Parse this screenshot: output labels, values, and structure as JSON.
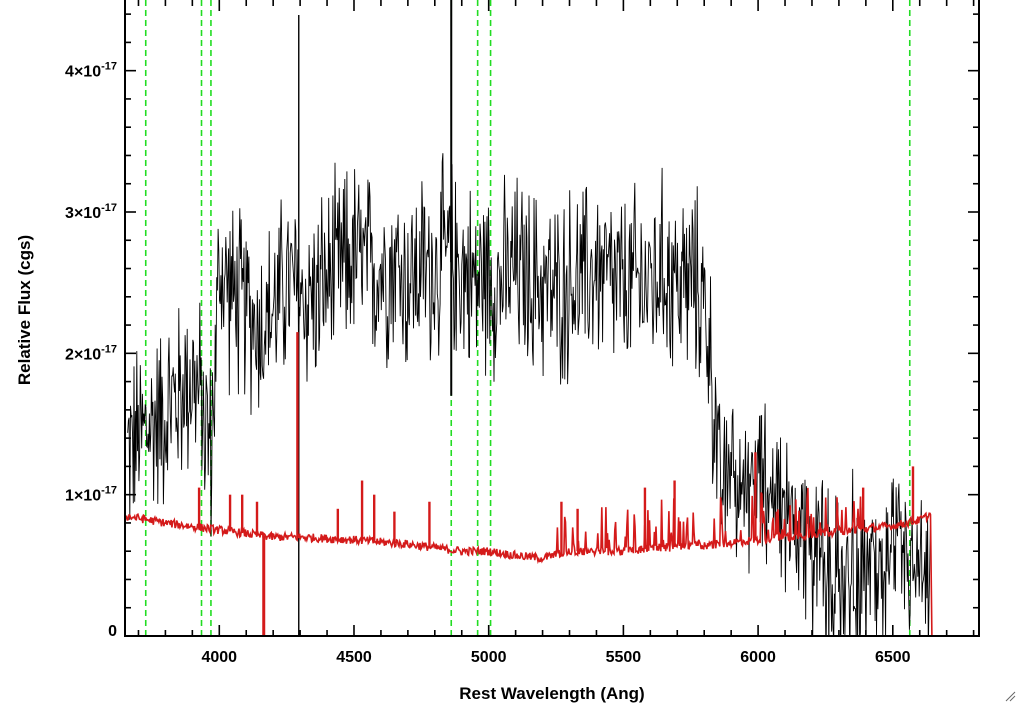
{
  "chart_data": {
    "type": "line",
    "xlabel": "Rest Wavelength (Ang)",
    "ylabel": "Relative Flux (cgs)",
    "xlim": [
      3650,
      6820
    ],
    "ylim": [
      0,
      4.5e-17
    ],
    "x_ticks": [
      {
        "value": 4000,
        "label": "4000"
      },
      {
        "value": 4500,
        "label": "4500"
      },
      {
        "value": 5000,
        "label": "5000"
      },
      {
        "value": 5500,
        "label": "5500"
      },
      {
        "value": 6000,
        "label": "6000"
      },
      {
        "value": 6500,
        "label": "6500"
      }
    ],
    "y_ticks": [
      {
        "value": 0,
        "mantissa": "0",
        "exponent": ""
      },
      {
        "value": 1e-17,
        "mantissa": "1×10",
        "exponent": "-17"
      },
      {
        "value": 2e-17,
        "mantissa": "2×10",
        "exponent": "-17"
      },
      {
        "value": 3e-17,
        "mantissa": "3×10",
        "exponent": "-17"
      },
      {
        "value": 4e-17,
        "mantissa": "4×10",
        "exponent": "-17"
      }
    ],
    "series": [
      {
        "color": "#000000",
        "x": [
          3660,
          3700,
          3750,
          3800,
          3850,
          3900,
          3940,
          3970,
          4000,
          4050,
          4100,
          4150,
          4200,
          4250,
          4300,
          4350,
          4400,
          4450,
          4500,
          4550,
          4600,
          4650,
          4700,
          4750,
          4800,
          4850,
          4900,
          4950,
          5000,
          5050,
          5100,
          5150,
          5200,
          5250,
          5300,
          5350,
          5400,
          5450,
          5500,
          5550,
          5600,
          5650,
          5700,
          5750,
          5800,
          5830,
          5860,
          5900,
          5950,
          6000,
          6050,
          6100,
          6150,
          6200,
          6250,
          6300,
          6350,
          6400,
          6450,
          6500,
          6550,
          6600,
          6640
        ],
        "y": [
          1.3e-17,
          1.4e-17,
          1.5e-17,
          1.6e-17,
          1.7e-17,
          1.85e-17,
          1.6e-17,
          1.3e-17,
          2.6e-17,
          2.4e-17,
          2.3e-17,
          2.2e-17,
          2.3e-17,
          2.5e-17,
          2.4e-17,
          2.4e-17,
          2.5e-17,
          2.6e-17,
          2.7e-17,
          2.6e-17,
          2.6e-17,
          2.65e-17,
          2.5e-17,
          2.6e-17,
          2.6e-17,
          2.7e-17,
          2.6e-17,
          2.5e-17,
          2.55e-17,
          2.5e-17,
          2.6e-17,
          2.5e-17,
          2.5e-17,
          2.4e-17,
          2.5e-17,
          2.5e-17,
          2.6e-17,
          2.5e-17,
          2.45e-17,
          2.5e-17,
          2.5e-17,
          2.6e-17,
          2.5e-17,
          2.5e-17,
          2.4e-17,
          1.8e-17,
          1e-17,
          1.2e-17,
          1.1e-17,
          1.1e-17,
          1e-17,
          9e-18,
          8e-18,
          7e-18,
          5e-18,
          4e-18,
          4e-18,
          5e-18,
          4e-18,
          5e-18,
          5e-18,
          4e-18,
          2e-18
        ]
      },
      {
        "color": "#d41a1a",
        "x": [
          3650,
          3800,
          4000,
          4200,
          4300,
          4500,
          4700,
          4900,
          5000,
          5100,
          5200,
          5300,
          5400,
          5500,
          5600,
          5700,
          5800,
          5900,
          6000,
          6100,
          6200,
          6300,
          6400,
          6500,
          6600,
          6640,
          6645,
          6820
        ],
        "y": [
          8.5e-18,
          8e-18,
          7.5e-18,
          7e-18,
          7e-18,
          6.8e-18,
          6.5e-18,
          6e-18,
          6e-18,
          5.7e-18,
          5.5e-18,
          6e-18,
          6e-18,
          6e-18,
          6.2e-18,
          6.3e-18,
          6.4e-18,
          6.6e-18,
          6.8e-18,
          7e-18,
          7.2e-18,
          7.4e-18,
          7.6e-18,
          7.8e-18,
          8.2e-18,
          8.6e-18,
          0.0,
          0.0
        ]
      }
    ],
    "red_spikes": [
      {
        "x": 3925,
        "y": 1.05e-17
      },
      {
        "x": 4040,
        "y": 1e-17
      },
      {
        "x": 4085,
        "y": 1e-17
      },
      {
        "x": 4140,
        "y": 9.5e-18
      },
      {
        "x": 4290,
        "y": 2.15e-17
      },
      {
        "x": 4440,
        "y": 9e-18
      },
      {
        "x": 4530,
        "y": 1.1e-17
      },
      {
        "x": 4575,
        "y": 1e-17
      },
      {
        "x": 4650,
        "y": 8.8e-18
      },
      {
        "x": 4780,
        "y": 9.5e-18
      },
      {
        "x": 5270,
        "y": 9.5e-18
      },
      {
        "x": 5330,
        "y": 9e-18
      },
      {
        "x": 5580,
        "y": 1.05e-17
      },
      {
        "x": 5690,
        "y": 1.1e-17
      },
      {
        "x": 5990,
        "y": 1.3e-17
      },
      {
        "x": 6390,
        "y": 1.05e-17
      },
      {
        "x": 6575,
        "y": 1.2e-17
      }
    ],
    "red_dips": [
      {
        "x": 4165,
        "y": 0.0
      }
    ],
    "vertical_markers": {
      "color": "#22dd22",
      "style": "dashed",
      "x": [
        3727,
        3934,
        3969,
        4861,
        4959,
        5007,
        6563
      ]
    },
    "black_marker_top": {
      "x": 4861
    },
    "grid": false,
    "legend": "none"
  }
}
